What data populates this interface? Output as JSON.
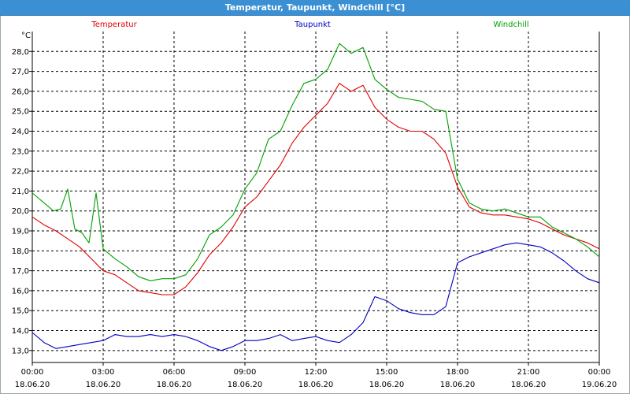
{
  "window": {
    "title": "Temperatur, Taupunkt, Windchill [°C]"
  },
  "chart_data": {
    "type": "line",
    "title": "Temperatur, Taupunkt, Windchill [°C]",
    "ylabel": "°C",
    "xlabel": "",
    "ylim": [
      12.4,
      29.0
    ],
    "xlim": [
      0,
      24
    ],
    "grid": true,
    "yticks": [
      13.0,
      14.0,
      15.0,
      16.0,
      17.0,
      18.0,
      19.0,
      20.0,
      21.0,
      22.0,
      23.0,
      24.0,
      25.0,
      26.0,
      27.0,
      28.0
    ],
    "ytick_labels": [
      "13,0",
      "14,0",
      "15,0",
      "16,0",
      "17,0",
      "18,0",
      "19,0",
      "20,0",
      "21,0",
      "22,0",
      "23,0",
      "24,0",
      "25,0",
      "26,0",
      "27,0",
      "28,0"
    ],
    "xticks": [
      0,
      3,
      6,
      9,
      12,
      15,
      18,
      21,
      24
    ],
    "xtick_times": [
      "00:00",
      "03:00",
      "06:00",
      "09:00",
      "12:00",
      "15:00",
      "18:00",
      "21:00",
      "00:00"
    ],
    "xtick_dates": [
      "18.06.20",
      "18.06.20",
      "18.06.20",
      "18.06.20",
      "18.06.20",
      "18.06.20",
      "18.06.20",
      "18.06.20",
      "19.06.20"
    ],
    "series": [
      {
        "name": "Temperatur",
        "color": "#e00000",
        "x": [
          0,
          0.5,
          1,
          1.5,
          2,
          2.5,
          3,
          3.5,
          4,
          4.5,
          5,
          5.5,
          6,
          6.5,
          7,
          7.5,
          8,
          8.5,
          9,
          9.5,
          10,
          10.5,
          11,
          11.5,
          12,
          12.5,
          13,
          13.5,
          14,
          14.5,
          15,
          15.5,
          16,
          16.5,
          17,
          17.5,
          18,
          18.5,
          19,
          19.5,
          20,
          20.5,
          21,
          21.5,
          22,
          22.5,
          23,
          23.5,
          24
        ],
        "values": [
          19.7,
          19.3,
          19.0,
          18.6,
          18.2,
          17.6,
          17.0,
          16.8,
          16.4,
          16.0,
          15.9,
          15.8,
          15.8,
          16.2,
          16.9,
          17.8,
          18.4,
          19.2,
          20.2,
          20.7,
          21.5,
          22.3,
          23.4,
          24.2,
          24.8,
          25.4,
          26.4,
          26.0,
          26.3,
          25.2,
          24.6,
          24.2,
          24.0,
          24.0,
          23.6,
          22.9,
          21.2,
          20.2,
          19.9,
          19.8,
          19.8,
          19.7,
          19.6,
          19.4,
          19.1,
          18.8,
          18.6,
          18.4,
          18.1
        ]
      },
      {
        "name": "Taupunkt",
        "color": "#0000c0",
        "x": [
          0,
          0.5,
          1,
          1.5,
          2,
          2.5,
          3,
          3.5,
          4,
          4.5,
          5,
          5.5,
          6,
          6.5,
          7,
          7.5,
          8,
          8.5,
          9,
          9.5,
          10,
          10.5,
          11,
          11.5,
          12,
          12.5,
          13,
          13.5,
          14,
          14.5,
          15,
          15.5,
          16,
          16.5,
          17,
          17.5,
          18,
          18.5,
          19,
          19.5,
          20,
          20.5,
          21,
          21.5,
          22,
          22.5,
          23,
          23.5,
          24
        ],
        "values": [
          13.9,
          13.4,
          13.1,
          13.2,
          13.3,
          13.4,
          13.5,
          13.8,
          13.7,
          13.7,
          13.8,
          13.7,
          13.8,
          13.7,
          13.5,
          13.2,
          13.0,
          13.2,
          13.5,
          13.5,
          13.6,
          13.8,
          13.5,
          13.6,
          13.7,
          13.5,
          13.4,
          13.8,
          14.4,
          15.7,
          15.5,
          15.1,
          14.9,
          14.8,
          14.8,
          15.2,
          17.4,
          17.7,
          17.9,
          18.1,
          18.3,
          18.4,
          18.3,
          18.2,
          17.9,
          17.5,
          17.0,
          16.6,
          16.4
        ]
      },
      {
        "name": "Windchill",
        "color": "#00a000",
        "x": [
          0,
          0.3,
          0.6,
          0.9,
          1.2,
          1.5,
          1.8,
          2.1,
          2.4,
          2.7,
          3,
          3.5,
          4,
          4.5,
          5,
          5.5,
          6,
          6.5,
          7,
          7.5,
          8,
          8.5,
          9,
          9.5,
          10,
          10.5,
          11,
          11.5,
          12,
          12.5,
          13,
          13.5,
          14,
          14.5,
          15,
          15.5,
          16,
          16.5,
          17,
          17.5,
          18,
          18.5,
          19,
          19.5,
          20,
          20.5,
          21,
          21.5,
          22,
          22.5,
          23,
          23.5,
          24
        ],
        "values": [
          20.9,
          20.6,
          20.3,
          20.0,
          20.1,
          21.1,
          19.1,
          18.9,
          18.4,
          20.9,
          18.1,
          17.6,
          17.2,
          16.7,
          16.5,
          16.6,
          16.6,
          16.8,
          17.6,
          18.8,
          19.2,
          19.8,
          21.1,
          21.9,
          23.6,
          24.0,
          25.3,
          26.4,
          26.6,
          27.1,
          28.4,
          27.9,
          28.2,
          26.6,
          26.1,
          25.7,
          25.6,
          25.5,
          25.1,
          25.0,
          21.6,
          20.4,
          20.1,
          20.0,
          20.1,
          19.9,
          19.7,
          19.7,
          19.2,
          18.9,
          18.6,
          18.2,
          17.7
        ]
      }
    ]
  }
}
